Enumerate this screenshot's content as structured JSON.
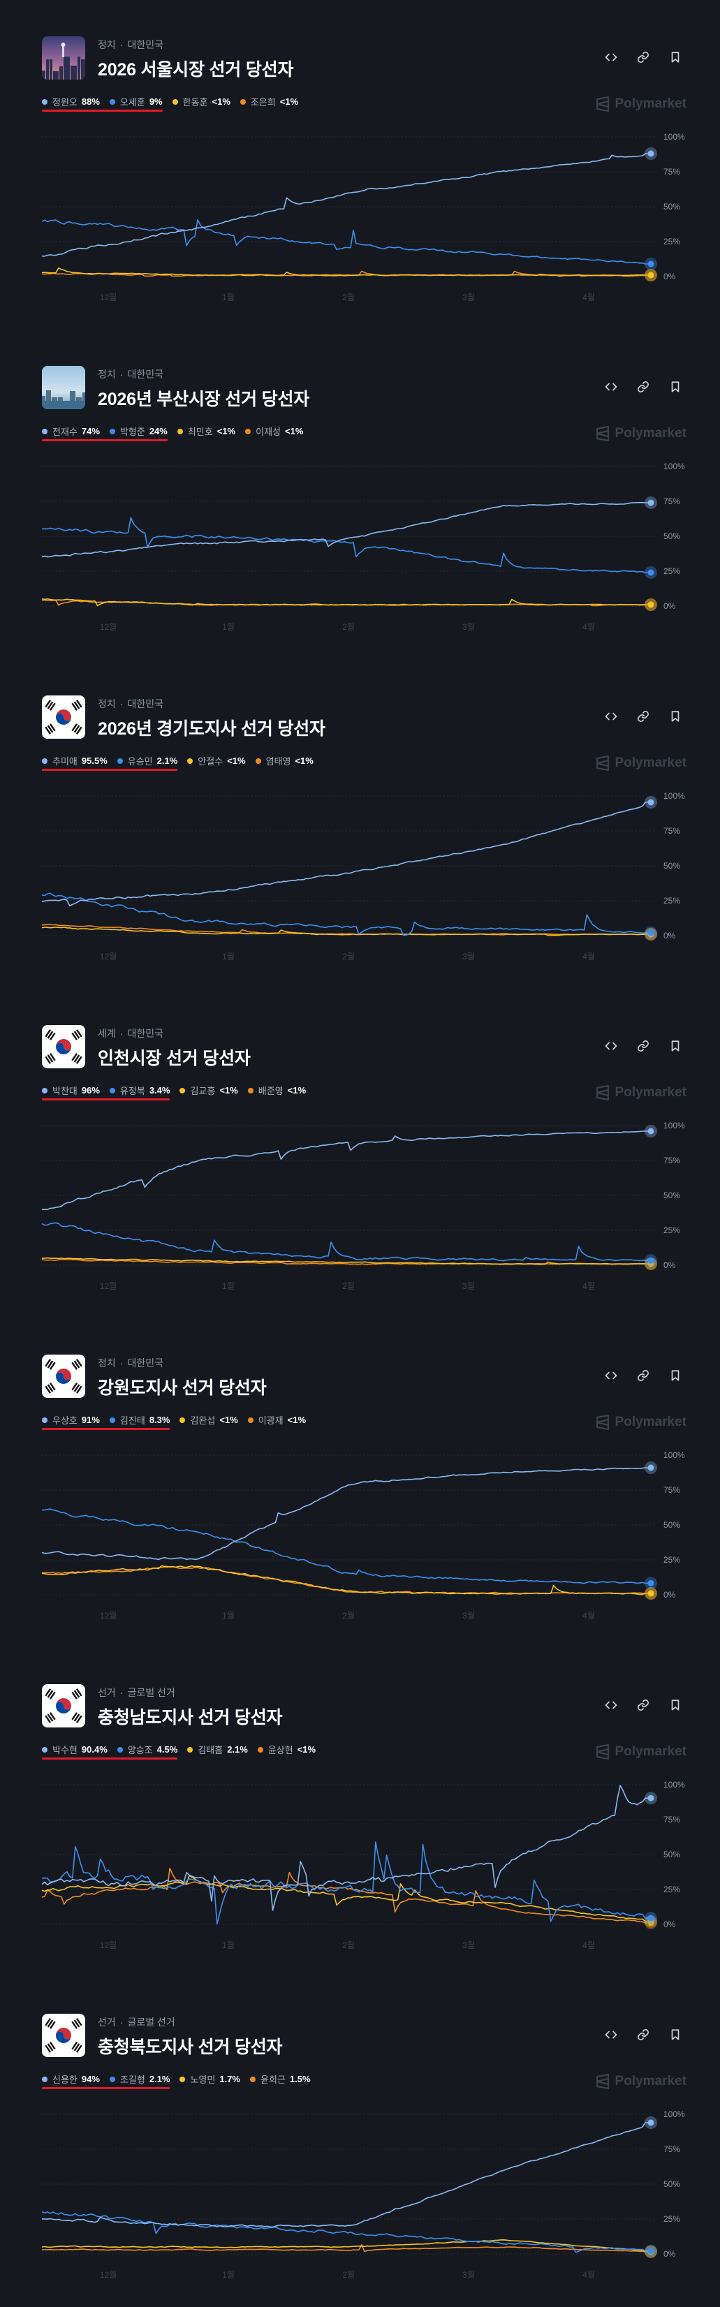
{
  "markets": [
    {
      "category": "정치",
      "region": "대한민국",
      "title": "2026 서울시장 선거 당선자",
      "thumb": "seoul-city-photo",
      "legend": [
        {
          "name": "정원오",
          "value": "88%",
          "color": "#8ab8f5"
        },
        {
          "name": "오세훈",
          "value": "9%",
          "color": "#3d8ef0"
        },
        {
          "name": "한동훈",
          "value": "<1%",
          "color": "#f5c22a"
        },
        {
          "name": "조은희",
          "value": "<1%",
          "color": "#f08a1c"
        }
      ],
      "brand": "Polymarket"
    },
    {
      "category": "정치",
      "region": "대한민국",
      "title": "2026년 부산시장 선거 당선자",
      "thumb": "busan-city-photo",
      "legend": [
        {
          "name": "전재수",
          "value": "74%",
          "color": "#8ab8f5"
        },
        {
          "name": "박형준",
          "value": "24%",
          "color": "#3d8ef0"
        },
        {
          "name": "최민호",
          "value": "<1%",
          "color": "#f5c22a"
        },
        {
          "name": "이재성",
          "value": "<1%",
          "color": "#f08a1c"
        }
      ],
      "brand": "Polymarket"
    },
    {
      "category": "정치",
      "region": "대한민국",
      "title": "2026년 경기도지사 선거 당선자",
      "thumb": "korea-flag",
      "legend": [
        {
          "name": "추미애",
          "value": "95.5%",
          "color": "#8ab8f5"
        },
        {
          "name": "유승민",
          "value": "2.1%",
          "color": "#3d8ef0"
        },
        {
          "name": "안철수",
          "value": "<1%",
          "color": "#f5c22a"
        },
        {
          "name": "염태영",
          "value": "<1%",
          "color": "#f08a1c"
        }
      ],
      "brand": "Polymarket"
    },
    {
      "category": "세계",
      "region": "대한민국",
      "title": "인천시장 선거 당선자",
      "thumb": "korea-flag",
      "legend": [
        {
          "name": "박찬대",
          "value": "96%",
          "color": "#8ab8f5"
        },
        {
          "name": "유정복",
          "value": "3.4%",
          "color": "#3d8ef0"
        },
        {
          "name": "김교흥",
          "value": "<1%",
          "color": "#f5c22a"
        },
        {
          "name": "배준영",
          "value": "<1%",
          "color": "#f08a1c"
        }
      ],
      "brand": "Polymarket"
    },
    {
      "category": "정치",
      "region": "대한민국",
      "title": "강원도지사 선거 당선자",
      "thumb": "korea-flag",
      "legend": [
        {
          "name": "우상호",
          "value": "91%",
          "color": "#8ab8f5"
        },
        {
          "name": "김진태",
          "value": "8.3%",
          "color": "#3d8ef0"
        },
        {
          "name": "김완섭",
          "value": "<1%",
          "color": "#f5c22a"
        },
        {
          "name": "이광재",
          "value": "<1%",
          "color": "#f08a1c"
        }
      ],
      "brand": "Polymarket"
    },
    {
      "category": "선거",
      "region": "글로벌 선거",
      "title": "충청남도지사 선거 당선자",
      "thumb": "korea-flag",
      "legend": [
        {
          "name": "박수현",
          "value": "90.4%",
          "color": "#8ab8f5"
        },
        {
          "name": "양승조",
          "value": "4.5%",
          "color": "#3d8ef0"
        },
        {
          "name": "김태흠",
          "value": "2.1%",
          "color": "#f5c22a"
        },
        {
          "name": "윤상현",
          "value": "<1%",
          "color": "#f08a1c"
        }
      ],
      "brand": "Polymarket"
    },
    {
      "category": "선거",
      "region": "글로벌 선거",
      "title": "충청북도지사 선거 당선자",
      "thumb": "korea-flag",
      "legend": [
        {
          "name": "신용한",
          "value": "94%",
          "color": "#8ab8f5"
        },
        {
          "name": "조길형",
          "value": "2.1%",
          "color": "#3d8ef0"
        },
        {
          "name": "노영민",
          "value": "1.7%",
          "color": "#f5c22a"
        },
        {
          "name": "윤희근",
          "value": "1.5%",
          "color": "#f08a1c"
        }
      ],
      "brand": "Polymarket"
    }
  ],
  "chart_data": [
    {
      "type": "line",
      "title": "2026 서울시장 선거 당선자",
      "x_ticks": [
        "12월",
        "1월",
        "2월",
        "3월",
        "4월"
      ],
      "y_ticks": [
        "100%",
        "75%",
        "50%",
        "25%",
        "0%"
      ],
      "ylim": [
        0,
        100
      ],
      "x": [
        0,
        0.25,
        0.5,
        0.75,
        1
      ],
      "series": [
        {
          "name": "정원오",
          "color": "#8ab8f5",
          "values": [
            15,
            35,
            60,
            75,
            88
          ]
        },
        {
          "name": "오세훈",
          "color": "#3d8ef0",
          "values": [
            40,
            32,
            22,
            16,
            9
          ]
        },
        {
          "name": "한동훈",
          "color": "#f5c22a",
          "values": [
            3,
            1,
            1,
            1,
            1
          ]
        },
        {
          "name": "조은희",
          "color": "#f08a1c",
          "values": [
            2,
            1,
            1,
            1,
            1
          ]
        }
      ]
    },
    {
      "type": "line",
      "title": "2026년 부산시장 선거 당선자",
      "x_ticks": [
        "12월",
        "1월",
        "2월",
        "3월",
        "4월"
      ],
      "y_ticks": [
        "100%",
        "75%",
        "50%",
        "25%",
        "0%"
      ],
      "ylim": [
        0,
        100
      ],
      "x": [
        0,
        0.25,
        0.5,
        0.75,
        1
      ],
      "series": [
        {
          "name": "전재수",
          "color": "#8ab8f5",
          "values": [
            35,
            45,
            48,
            72,
            74
          ]
        },
        {
          "name": "박형준",
          "color": "#3d8ef0",
          "values": [
            55,
            50,
            45,
            28,
            24
          ]
        },
        {
          "name": "최민호",
          "color": "#f5c22a",
          "values": [
            5,
            1,
            1,
            1,
            1
          ]
        },
        {
          "name": "이재성",
          "color": "#f08a1c",
          "values": [
            4,
            1,
            1,
            1,
            1
          ]
        }
      ]
    },
    {
      "type": "line",
      "title": "2026년 경기도지사 선거 당선자",
      "x_ticks": [
        "12월",
        "1월",
        "2월",
        "3월",
        "4월"
      ],
      "y_ticks": [
        "100%",
        "75%",
        "50%",
        "25%",
        "0%"
      ],
      "ylim": [
        0,
        100
      ],
      "x": [
        0,
        0.25,
        0.5,
        0.75,
        1
      ],
      "series": [
        {
          "name": "추미애",
          "color": "#8ab8f5",
          "values": [
            25,
            30,
            45,
            65,
            95.5
          ]
        },
        {
          "name": "유승민",
          "color": "#3d8ef0",
          "values": [
            30,
            10,
            6,
            5,
            2.1
          ]
        },
        {
          "name": "안철수",
          "color": "#f5c22a",
          "values": [
            6,
            2,
            1,
            1,
            1
          ]
        },
        {
          "name": "염태영",
          "color": "#f08a1c",
          "values": [
            8,
            3,
            1,
            1,
            1
          ]
        }
      ]
    },
    {
      "type": "line",
      "title": "인천시장 선거 당선자",
      "x_ticks": [
        "12월",
        "1월",
        "2월",
        "3월",
        "4월"
      ],
      "y_ticks": [
        "100%",
        "75%",
        "50%",
        "25%",
        "0%"
      ],
      "ylim": [
        0,
        100
      ],
      "x": [
        0,
        0.25,
        0.5,
        0.75,
        1
      ],
      "series": [
        {
          "name": "박찬대",
          "color": "#8ab8f5",
          "values": [
            40,
            75,
            88,
            93,
            96
          ]
        },
        {
          "name": "유정복",
          "color": "#3d8ef0",
          "values": [
            30,
            10,
            5,
            4,
            3.4
          ]
        },
        {
          "name": "김교흥",
          "color": "#f5c22a",
          "values": [
            5,
            3,
            2,
            1,
            1
          ]
        },
        {
          "name": "배준영",
          "color": "#f08a1c",
          "values": [
            4,
            2,
            1,
            1,
            1
          ]
        }
      ]
    },
    {
      "type": "line",
      "title": "강원도지사 선거 당선자",
      "x_ticks": [
        "12월",
        "1월",
        "2월",
        "3월",
        "4월"
      ],
      "y_ticks": [
        "100%",
        "75%",
        "50%",
        "25%",
        "0%"
      ],
      "ylim": [
        0,
        100
      ],
      "x": [
        0,
        0.25,
        0.5,
        0.75,
        1
      ],
      "series": [
        {
          "name": "우상호",
          "color": "#8ab8f5",
          "values": [
            30,
            25,
            80,
            88,
            91
          ]
        },
        {
          "name": "김진태",
          "color": "#3d8ef0",
          "values": [
            60,
            45,
            15,
            10,
            8.3
          ]
        },
        {
          "name": "김완섭",
          "color": "#f5c22a",
          "values": [
            15,
            20,
            2,
            1,
            1
          ]
        },
        {
          "name": "이광재",
          "color": "#f08a1c",
          "values": [
            15,
            20,
            2,
            1,
            1
          ]
        }
      ]
    },
    {
      "type": "line",
      "title": "충청남도지사 선거 당선자",
      "x_ticks": [
        "12월",
        "1월",
        "2월",
        "3월",
        "4월"
      ],
      "y_ticks": [
        "100%",
        "75%",
        "50%",
        "25%",
        "0%"
      ],
      "ylim": [
        0,
        100
      ],
      "x": [
        0,
        0.25,
        0.5,
        0.75,
        1
      ],
      "series": [
        {
          "name": "박수현",
          "color": "#8ab8f5",
          "values": [
            30,
            30,
            30,
            45,
            90.4
          ]
        },
        {
          "name": "양승조",
          "color": "#3d8ef0",
          "values": [
            35,
            30,
            25,
            20,
            4.5
          ]
        },
        {
          "name": "김태흠",
          "color": "#f5c22a",
          "values": [
            25,
            30,
            20,
            15,
            2.1
          ]
        },
        {
          "name": "윤상현",
          "color": "#f08a1c",
          "values": [
            20,
            30,
            25,
            10,
            1
          ]
        }
      ]
    },
    {
      "type": "line",
      "title": "충청북도지사 선거 당선자",
      "x_ticks": [
        "12월",
        "1월",
        "2월",
        "3월",
        "4월"
      ],
      "y_ticks": [
        "100%",
        "75%",
        "50%",
        "25%",
        "0%"
      ],
      "ylim": [
        0,
        100
      ],
      "x": [
        0,
        0.25,
        0.5,
        0.75,
        1
      ],
      "series": [
        {
          "name": "신용한",
          "color": "#8ab8f5",
          "values": [
            25,
            20,
            20,
            60,
            94
          ]
        },
        {
          "name": "조길형",
          "color": "#3d8ef0",
          "values": [
            30,
            20,
            15,
            8,
            2.1
          ]
        },
        {
          "name": "노영민",
          "color": "#f5c22a",
          "values": [
            5,
            5,
            5,
            10,
            1.7
          ]
        },
        {
          "name": "윤희근",
          "color": "#f08a1c",
          "values": [
            3,
            3,
            3,
            5,
            1.5
          ]
        }
      ]
    }
  ]
}
